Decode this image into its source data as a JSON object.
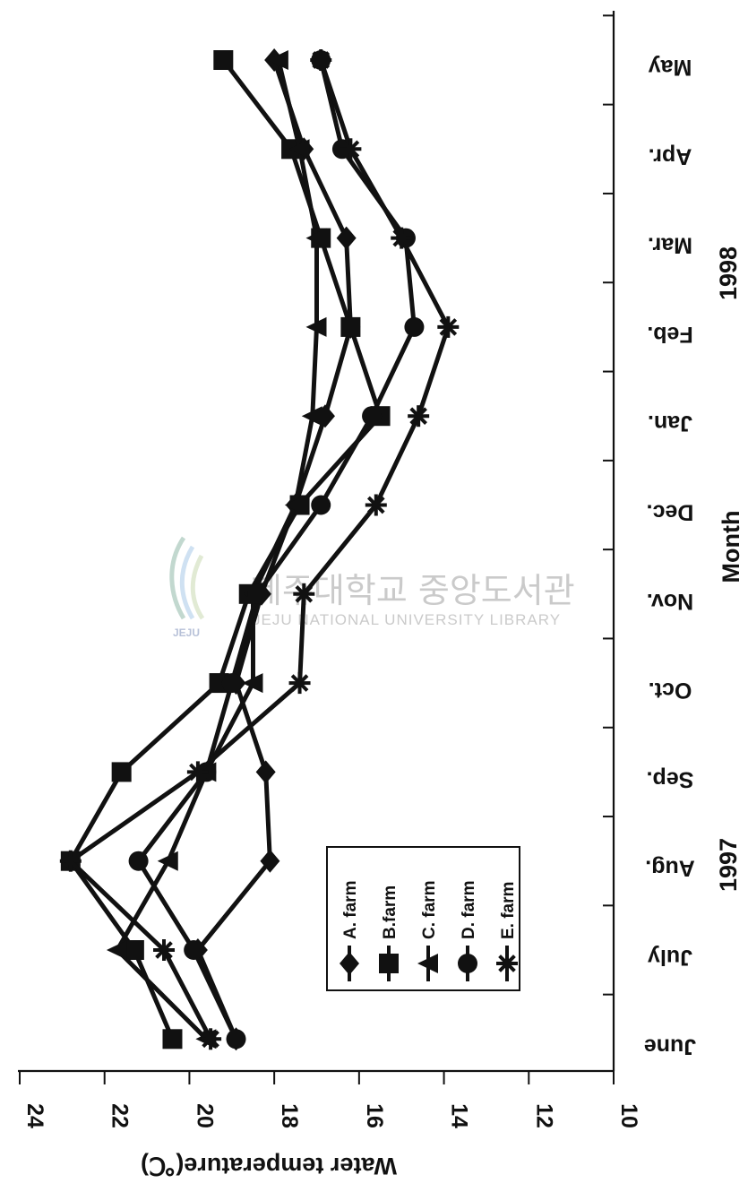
{
  "chart_data": {
    "type": "line",
    "xlabel": "Month",
    "ylabel": "Water temperature(℃)",
    "categories": [
      "June",
      "July",
      "Aug.",
      "Sep.",
      "Oct.",
      "Nov.",
      "Dec.",
      "Jan.",
      "Feb.",
      "Mar.",
      "Apr.",
      "May"
    ],
    "year_labels": [
      {
        "label": "1997",
        "after_category": "Aug."
      },
      {
        "label": "1998",
        "after_category": "Feb."
      }
    ],
    "ylim": [
      10,
      24
    ],
    "yticks": [
      "24",
      "22",
      "20",
      "18",
      "16",
      "14",
      "12",
      "10"
    ],
    "grid": false,
    "legend_position": "inside, lower-middle",
    "orientation": "rotated 90 degrees clockwise",
    "series": [
      {
        "name": "A. farm",
        "marker": "diamond",
        "values": [
          18.9,
          19.8,
          18.1,
          18.2,
          18.9,
          18.3,
          17.5,
          16.8,
          16.2,
          16.3,
          17.3,
          18.0
        ]
      },
      {
        "name": "B.farm",
        "marker": "square",
        "values": [
          20.4,
          21.3,
          22.8,
          21.6,
          19.3,
          18.6,
          17.4,
          15.5,
          16.2,
          16.9,
          17.6,
          19.2
        ]
      },
      {
        "name": "C. farm",
        "marker": "triangle",
        "values": [
          19.6,
          21.7,
          20.5,
          19.6,
          18.5,
          18.5,
          17.5,
          17.1,
          17.0,
          17.0,
          17.4,
          17.9
        ]
      },
      {
        "name": "D. farm",
        "marker": "circle",
        "values": [
          18.9,
          19.9,
          21.2,
          19.6,
          19.0,
          18.4,
          16.9,
          15.7,
          14.7,
          14.9,
          16.4,
          16.9
        ]
      },
      {
        "name": "E. farm",
        "marker": "asterisk",
        "values": [
          19.5,
          20.6,
          22.8,
          19.8,
          17.4,
          17.3,
          15.6,
          14.6,
          13.9,
          15.0,
          16.2,
          16.9
        ]
      }
    ]
  },
  "watermark": {
    "korean": "제주대학교 중앙도서관",
    "english": "JEJU NATIONAL UNIVERSITY LIBRARY",
    "logo_text": "JEJU"
  },
  "colors": {
    "ink": "#111111",
    "watermark": "#b9b9b9",
    "watermark_accent": "#8fb8a8"
  }
}
